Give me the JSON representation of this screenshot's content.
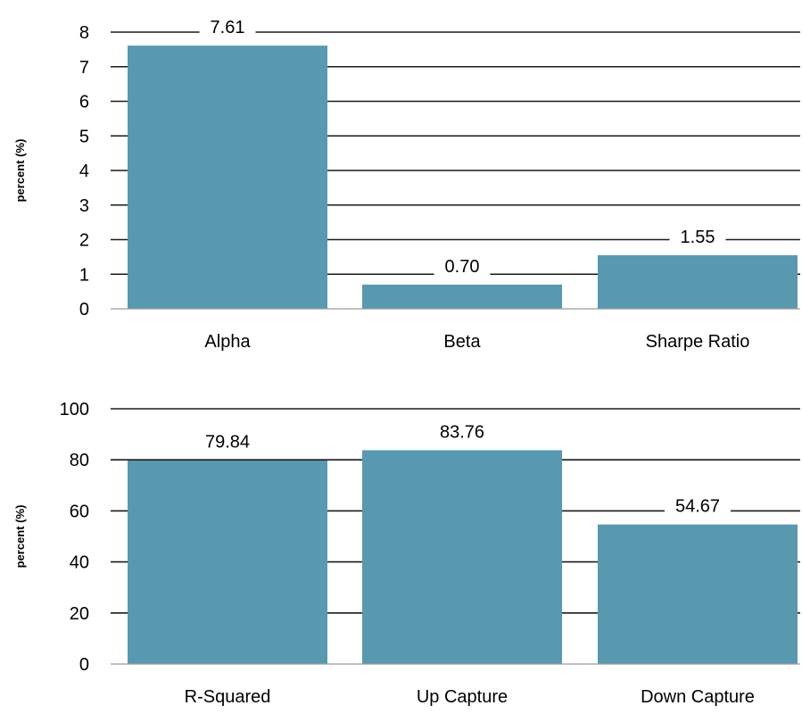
{
  "chart_data": [
    {
      "type": "bar",
      "categories": [
        "Alpha",
        "Beta",
        "Sharpe Ratio"
      ],
      "values": [
        7.61,
        0.7,
        1.55
      ],
      "data_labels": [
        "7.61",
        "0.70",
        "1.55"
      ],
      "ylabel": "percent (%)",
      "ylim": [
        0,
        8
      ],
      "yticks": [
        0,
        1,
        2,
        3,
        4,
        5,
        6,
        7,
        8
      ],
      "grid": true,
      "bar_color": "#5899b0"
    },
    {
      "type": "bar",
      "categories": [
        "R-Squared",
        "Up Capture",
        "Down Capture"
      ],
      "values": [
        79.84,
        83.76,
        54.67
      ],
      "data_labels": [
        "79.84",
        "83.76",
        "54.67"
      ],
      "ylabel": "percent (%)",
      "ylim": [
        0,
        100
      ],
      "yticks": [
        0,
        20,
        40,
        60,
        80,
        100
      ],
      "grid": true,
      "bar_color": "#5899b0"
    }
  ]
}
